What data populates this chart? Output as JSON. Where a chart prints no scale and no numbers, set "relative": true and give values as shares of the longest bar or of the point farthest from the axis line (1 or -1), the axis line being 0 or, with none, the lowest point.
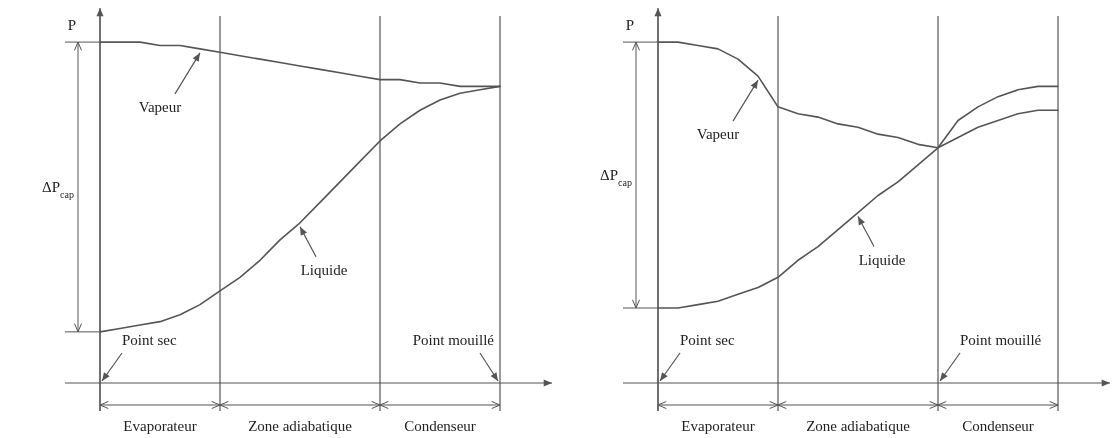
{
  "chart_data": [
    {
      "type": "line",
      "relative": true,
      "ylabel": "P",
      "marker": "none",
      "grid": "x",
      "categories": [
        null,
        null,
        null,
        null,
        null,
        null,
        null,
        null,
        null,
        null,
        null,
        null,
        null,
        null,
        null,
        null,
        null,
        null,
        null,
        null,
        null
      ],
      "series": [
        {
          "name": "Vapeur",
          "color": "#555555",
          "values": [
            1.0,
            1.0,
            1.0,
            0.99,
            0.99,
            0.98,
            0.97,
            0.96,
            0.95,
            0.94,
            0.93,
            0.92,
            0.91,
            0.9,
            0.89,
            0.89,
            0.88,
            0.88,
            0.87,
            0.87,
            0.87
          ]
        },
        {
          "name": "Liquide",
          "color": "#555555",
          "values": [
            0.15,
            0.16,
            0.17,
            0.18,
            0.2,
            0.23,
            0.27,
            0.31,
            0.36,
            0.42,
            0.47,
            0.53,
            0.59,
            0.65,
            0.71,
            0.76,
            0.8,
            0.83,
            0.85,
            0.86,
            0.87
          ]
        }
      ],
      "annotations": [
        "ΔP$_{cap}$",
        "Point sec",
        "Point mouillé",
        "Evaporateur",
        "Zone adiabatique",
        "Condenseur"
      ]
    },
    {
      "type": "line",
      "relative": true,
      "ylabel": "P",
      "marker": "none",
      "grid": "x",
      "categories": [
        null,
        null,
        null,
        null,
        null,
        null,
        null,
        null,
        null,
        null,
        null,
        null,
        null,
        null,
        null,
        null,
        null,
        null,
        null,
        null,
        null
      ],
      "series": [
        {
          "name": "Vapeur",
          "color": "#555555",
          "values": [
            1.0,
            1.0,
            0.99,
            0.98,
            0.95,
            0.9,
            0.81,
            0.79,
            0.78,
            0.76,
            0.75,
            0.73,
            0.72,
            0.7,
            0.69,
            0.77,
            0.81,
            0.84,
            0.86,
            0.87,
            0.87
          ]
        },
        {
          "name": "Liquide",
          "color": "#555555",
          "values": [
            0.22,
            0.22,
            0.23,
            0.24,
            0.26,
            0.28,
            0.31,
            0.36,
            0.4,
            0.45,
            0.5,
            0.55,
            0.59,
            0.64,
            0.69,
            0.72,
            0.75,
            0.77,
            0.79,
            0.8,
            0.8
          ]
        }
      ],
      "annotations": [
        "ΔP$_{cap}$",
        "Point sec",
        "Point mouillé",
        "Evaporateur",
        "Zone adiabatique",
        "Condenseur"
      ]
    }
  ]
}
